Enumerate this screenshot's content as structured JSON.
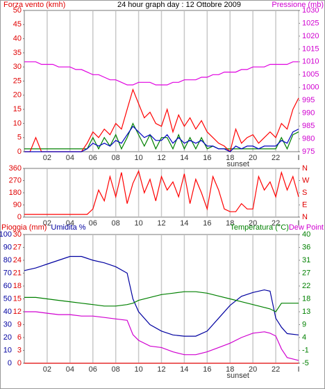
{
  "chart_data": [
    {
      "type": "line",
      "title": "24 hour graph day : 12 Ottobre 2009",
      "ylabel": "Forza vento (kmh)",
      "y2label": "Pressione (mb)",
      "xlim": [
        0,
        24
      ],
      "xticks": [
        {
          "value": 2,
          "label": "02"
        },
        {
          "value": 4,
          "label": "04"
        },
        {
          "value": 6,
          "label": "06"
        },
        {
          "value": 8,
          "label": "08"
        },
        10,
        12,
        14,
        16,
        18,
        20,
        22,
        {
          "value": 24,
          "label": "I"
        }
      ],
      "grid": "x",
      "annotations": [
        {
          "text": "sunset",
          "x": 18.7
        }
      ],
      "ylim": [
        0,
        50
      ],
      "yticks": [
        0,
        5,
        10,
        15,
        20,
        25,
        30,
        35,
        40,
        45,
        50
      ],
      "ycolor": "#e00000",
      "yside": "left",
      "y2lim": [
        975,
        1030
      ],
      "y2ticks": [
        975,
        980,
        985,
        990,
        995,
        1000,
        1005,
        1010,
        1015,
        1020,
        1025,
        1030
      ],
      "y2color": "#d000d0",
      "y2side": "right",
      "x": [
        0,
        0.5,
        1,
        1.5,
        2,
        2.5,
        3,
        3.5,
        4,
        4.5,
        5,
        5.5,
        6,
        6.5,
        7,
        7.5,
        8,
        8.5,
        9,
        9.5,
        10,
        10.5,
        11,
        11.5,
        12,
        12.5,
        13,
        13.5,
        14,
        14.5,
        15,
        15.5,
        16,
        16.5,
        17,
        17.5,
        18,
        18.5,
        19,
        19.5,
        20,
        20.5,
        21,
        21.5,
        22,
        22.5,
        23,
        23.5,
        24
      ],
      "series": [
        {
          "color": "#008000",
          "axis": "y",
          "values": [
            1,
            1,
            1,
            1,
            1,
            1,
            1,
            1,
            1,
            1,
            1,
            1,
            5,
            1,
            5,
            2,
            6,
            1,
            5,
            10,
            6,
            2,
            6,
            1,
            5,
            5,
            1,
            6,
            1,
            5,
            1,
            5,
            1,
            2,
            1,
            1,
            1,
            1,
            1,
            1,
            1,
            1,
            1,
            1,
            1,
            5,
            1,
            6,
            7
          ]
        },
        {
          "color": "#ff0000",
          "axis": "y",
          "values": [
            0,
            0,
            5,
            0,
            0,
            0,
            0,
            0,
            0,
            0,
            0,
            3,
            7,
            5,
            8,
            6,
            10,
            8,
            15,
            22,
            17,
            12,
            14,
            10,
            9,
            15,
            7,
            13,
            9,
            12,
            8,
            11,
            7,
            5,
            3,
            2,
            0,
            8,
            3,
            5,
            6,
            3,
            5,
            7,
            5,
            10,
            8,
            15,
            19
          ]
        },
        {
          "color": "#0000c0",
          "axis": "y",
          "values": [
            0,
            0,
            0,
            0,
            0,
            0,
            0,
            0,
            0,
            0,
            0,
            1,
            3,
            2,
            3,
            2,
            4,
            3,
            6,
            9,
            7,
            5,
            6,
            4,
            4,
            6,
            3,
            5,
            3,
            4,
            3,
            4,
            2,
            2,
            1,
            1,
            0,
            2,
            1,
            2,
            2,
            1,
            2,
            2,
            2,
            4,
            3,
            7,
            8
          ]
        },
        {
          "color": "#e000e0",
          "axis": "y2",
          "values": [
            1010,
            1010,
            1010,
            1009,
            1009,
            1009,
            1008,
            1008,
            1008,
            1007,
            1007,
            1006,
            1005,
            1005,
            1004,
            1003,
            1003,
            1002,
            1001,
            1001,
            1002,
            1002,
            1002,
            1001,
            1001,
            1001,
            1002,
            1002,
            1003,
            1003,
            1003,
            1004,
            1004,
            1005,
            1005,
            1006,
            1006,
            1006,
            1007,
            1007,
            1008,
            1008,
            1008,
            1009,
            1009,
            1009,
            1009,
            1010,
            1010
          ]
        }
      ]
    },
    {
      "type": "line",
      "xlim": [
        0,
        24
      ],
      "xticks": [
        {
          "value": 2,
          "label": "02"
        },
        {
          "value": 4,
          "label": "04"
        },
        {
          "value": 6,
          "label": "06"
        },
        {
          "value": 8,
          "label": "08"
        },
        10,
        12,
        14,
        16,
        18,
        20,
        22,
        {
          "value": 24,
          "label": "I"
        }
      ],
      "grid": "x",
      "ylim": [
        0,
        360
      ],
      "yticks": [
        0,
        90,
        180,
        270,
        360
      ],
      "ycolor": "#e00000",
      "yside": "left",
      "y2lim": [
        0,
        360
      ],
      "y2ticks": [
        {
          "value": 0,
          "label": "N"
        },
        {
          "value": 90,
          "label": "E"
        },
        {
          "value": 180,
          "label": "S"
        },
        {
          "value": 270,
          "label": "W"
        },
        {
          "value": 360,
          "label": "N"
        }
      ],
      "y2color": "#e00000",
      "y2side": "right",
      "x": [
        0,
        0.5,
        1,
        1.5,
        2,
        2.5,
        3,
        3.5,
        4,
        4.5,
        5,
        5.5,
        6,
        6.5,
        7,
        7.5,
        8,
        8.5,
        9,
        9.5,
        10,
        10.5,
        11,
        11.5,
        12,
        12.5,
        13,
        13.5,
        14,
        14.5,
        15,
        15.5,
        16,
        16.5,
        17,
        17.5,
        18,
        18.5,
        19,
        19.5,
        20,
        20.5,
        21,
        21.5,
        22,
        22.5,
        23,
        23.5,
        24
      ],
      "series": [
        {
          "color": "#ff0000",
          "axis": "y",
          "values": [
            20,
            20,
            20,
            20,
            20,
            20,
            20,
            20,
            20,
            20,
            20,
            20,
            60,
            200,
            120,
            300,
            150,
            330,
            100,
            250,
            340,
            180,
            280,
            120,
            300,
            200,
            260,
            150,
            320,
            100,
            280,
            180,
            60,
            300,
            200,
            60,
            40,
            40,
            100,
            60,
            60,
            300,
            200,
            260,
            150,
            330,
            200,
            300,
            150
          ]
        }
      ]
    },
    {
      "type": "line",
      "xlim": [
        0,
        24
      ],
      "xticks": [
        {
          "value": 2,
          "label": "02"
        },
        {
          "value": 4,
          "label": "04"
        },
        {
          "value": 6,
          "label": "06"
        },
        {
          "value": 8,
          "label": "08"
        },
        10,
        12,
        14,
        16,
        18,
        20,
        22,
        {
          "value": 24,
          "label": "I"
        }
      ],
      "grid": "x",
      "annotations": [
        {
          "text": "sunset",
          "x": 18.7
        }
      ],
      "ylim": [
        0,
        30
      ],
      "yticks": [
        0,
        3,
        6,
        9,
        12,
        15,
        18,
        21,
        24,
        27,
        30
      ],
      "ycolor": "#e00000",
      "yside": "left",
      "y2lim": [
        0,
        100
      ],
      "y2ticks": [
        0,
        10,
        20,
        30,
        40,
        50,
        60,
        70,
        80,
        90,
        100
      ],
      "y2color": "#0000a0",
      "y2side": "left",
      "y3lim": [
        -5,
        40
      ],
      "y3ticks": [
        {
          "value": -5,
          "label": "-5"
        },
        {
          "value": -0.5,
          "label": "-1"
        },
        4,
        {
          "value": 8.5,
          "label": "9"
        },
        13,
        {
          "value": 17.5,
          "label": "18"
        },
        22,
        {
          "value": 26.5,
          "label": "27"
        },
        31,
        {
          "value": 35.5,
          "label": "36"
        },
        40
      ],
      "y3color": "#008000",
      "y3side": "right",
      "x": [
        0,
        1,
        2,
        3,
        4,
        5,
        6,
        7,
        8,
        9,
        9.5,
        10,
        11,
        12,
        13,
        14,
        15,
        16,
        17,
        18,
        19,
        20,
        21,
        21.5,
        22,
        22.5,
        23,
        24
      ],
      "series": [
        {
          "name": "Pioggia (mm)",
          "color": "#e00000",
          "axis": "y",
          "values": [
            0,
            0,
            0,
            0,
            0,
            0,
            0,
            0,
            0,
            0,
            0,
            0,
            0,
            0,
            0,
            0,
            0,
            0,
            0,
            0,
            0,
            0,
            0,
            0,
            0,
            0,
            0,
            0
          ]
        },
        {
          "name": "Umidita %",
          "color": "#0000a0",
          "axis": "y2",
          "values": [
            72,
            74,
            77,
            80,
            83,
            83,
            80,
            78,
            75,
            70,
            50,
            40,
            30,
            25,
            22,
            21,
            21,
            25,
            35,
            45,
            52,
            55,
            57,
            56,
            35,
            28,
            23,
            22
          ]
        },
        {
          "name": "Temperatura (°C)",
          "color": "#008000",
          "axis": "y3",
          "values": [
            18,
            18,
            17.5,
            17,
            16.5,
            16,
            15.5,
            15,
            15,
            15.5,
            16,
            17,
            18,
            19,
            19.5,
            20,
            20,
            19.5,
            18.5,
            17.5,
            16.5,
            15.5,
            14.5,
            14,
            13,
            16,
            16,
            16
          ]
        },
        {
          "name": "Dew Point",
          "color": "#d000d0",
          "axis": "y3",
          "values": [
            13,
            13,
            12.5,
            12,
            12,
            11.5,
            11.5,
            11,
            10.5,
            10,
            5,
            3,
            1,
            0.5,
            -1,
            -2,
            -2,
            -1,
            0.5,
            2,
            4,
            5.5,
            6,
            5.5,
            4.5,
            0,
            -3,
            -4
          ]
        }
      ]
    }
  ]
}
